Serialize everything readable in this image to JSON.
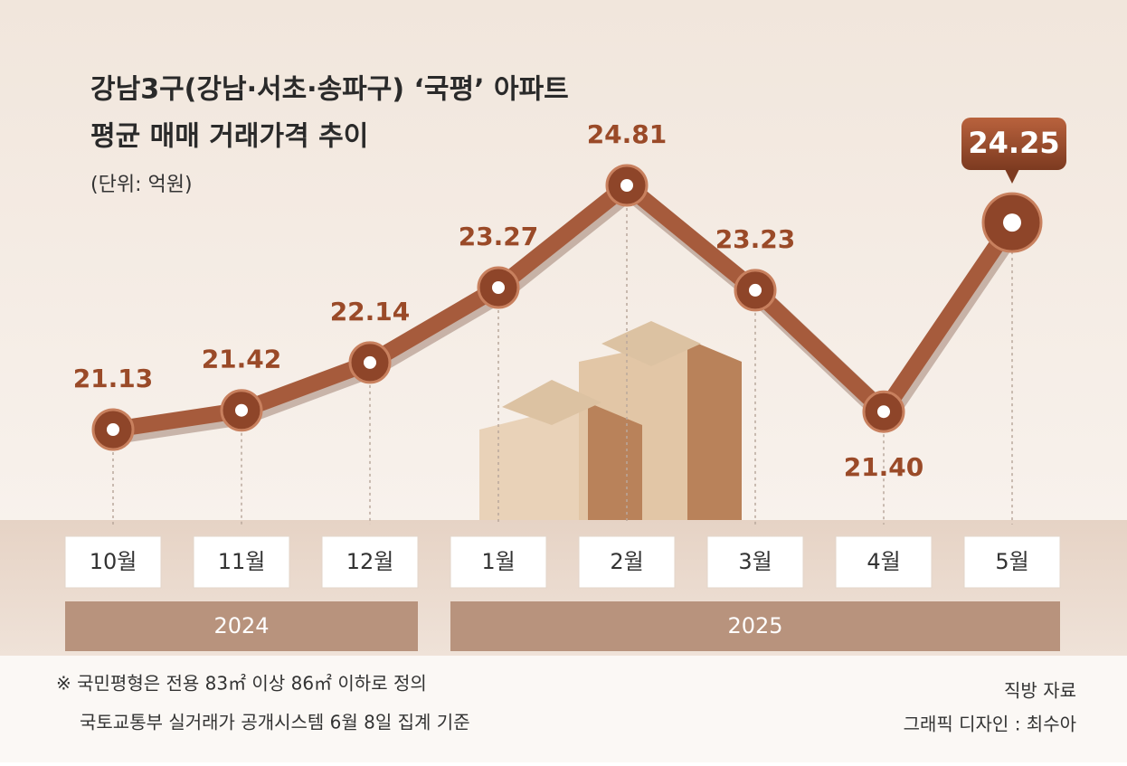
{
  "chart_data": {
    "type": "line",
    "title": [
      "강남3구(강남·서초·송파구) ‘국평’ 아파트",
      "평균 매매 거래가격 추이"
    ],
    "subtitle": "(단위: 억원)",
    "categories": [
      "10월",
      "11월",
      "12월",
      "1월",
      "2월",
      "3월",
      "4월",
      "5월"
    ],
    "year_groups": [
      "2024",
      "2025"
    ],
    "values": [
      21.13,
      21.42,
      22.14,
      23.27,
      24.81,
      23.23,
      21.4,
      24.25
    ],
    "value_labels": [
      "21.13",
      "21.42",
      "22.14",
      "23.27",
      "24.81",
      "23.23",
      "21.40",
      "24.25"
    ],
    "color": "#a65b3c",
    "notes": [
      "※ 국민평형은 전용 83㎡ 이상 86㎡ 이하로 정의",
      "국토교통부 실거래가 공개시스템 6월 8일 집계 기준"
    ],
    "source": "직방 자료",
    "credit": "그래픽 디자인 : 최수아"
  }
}
